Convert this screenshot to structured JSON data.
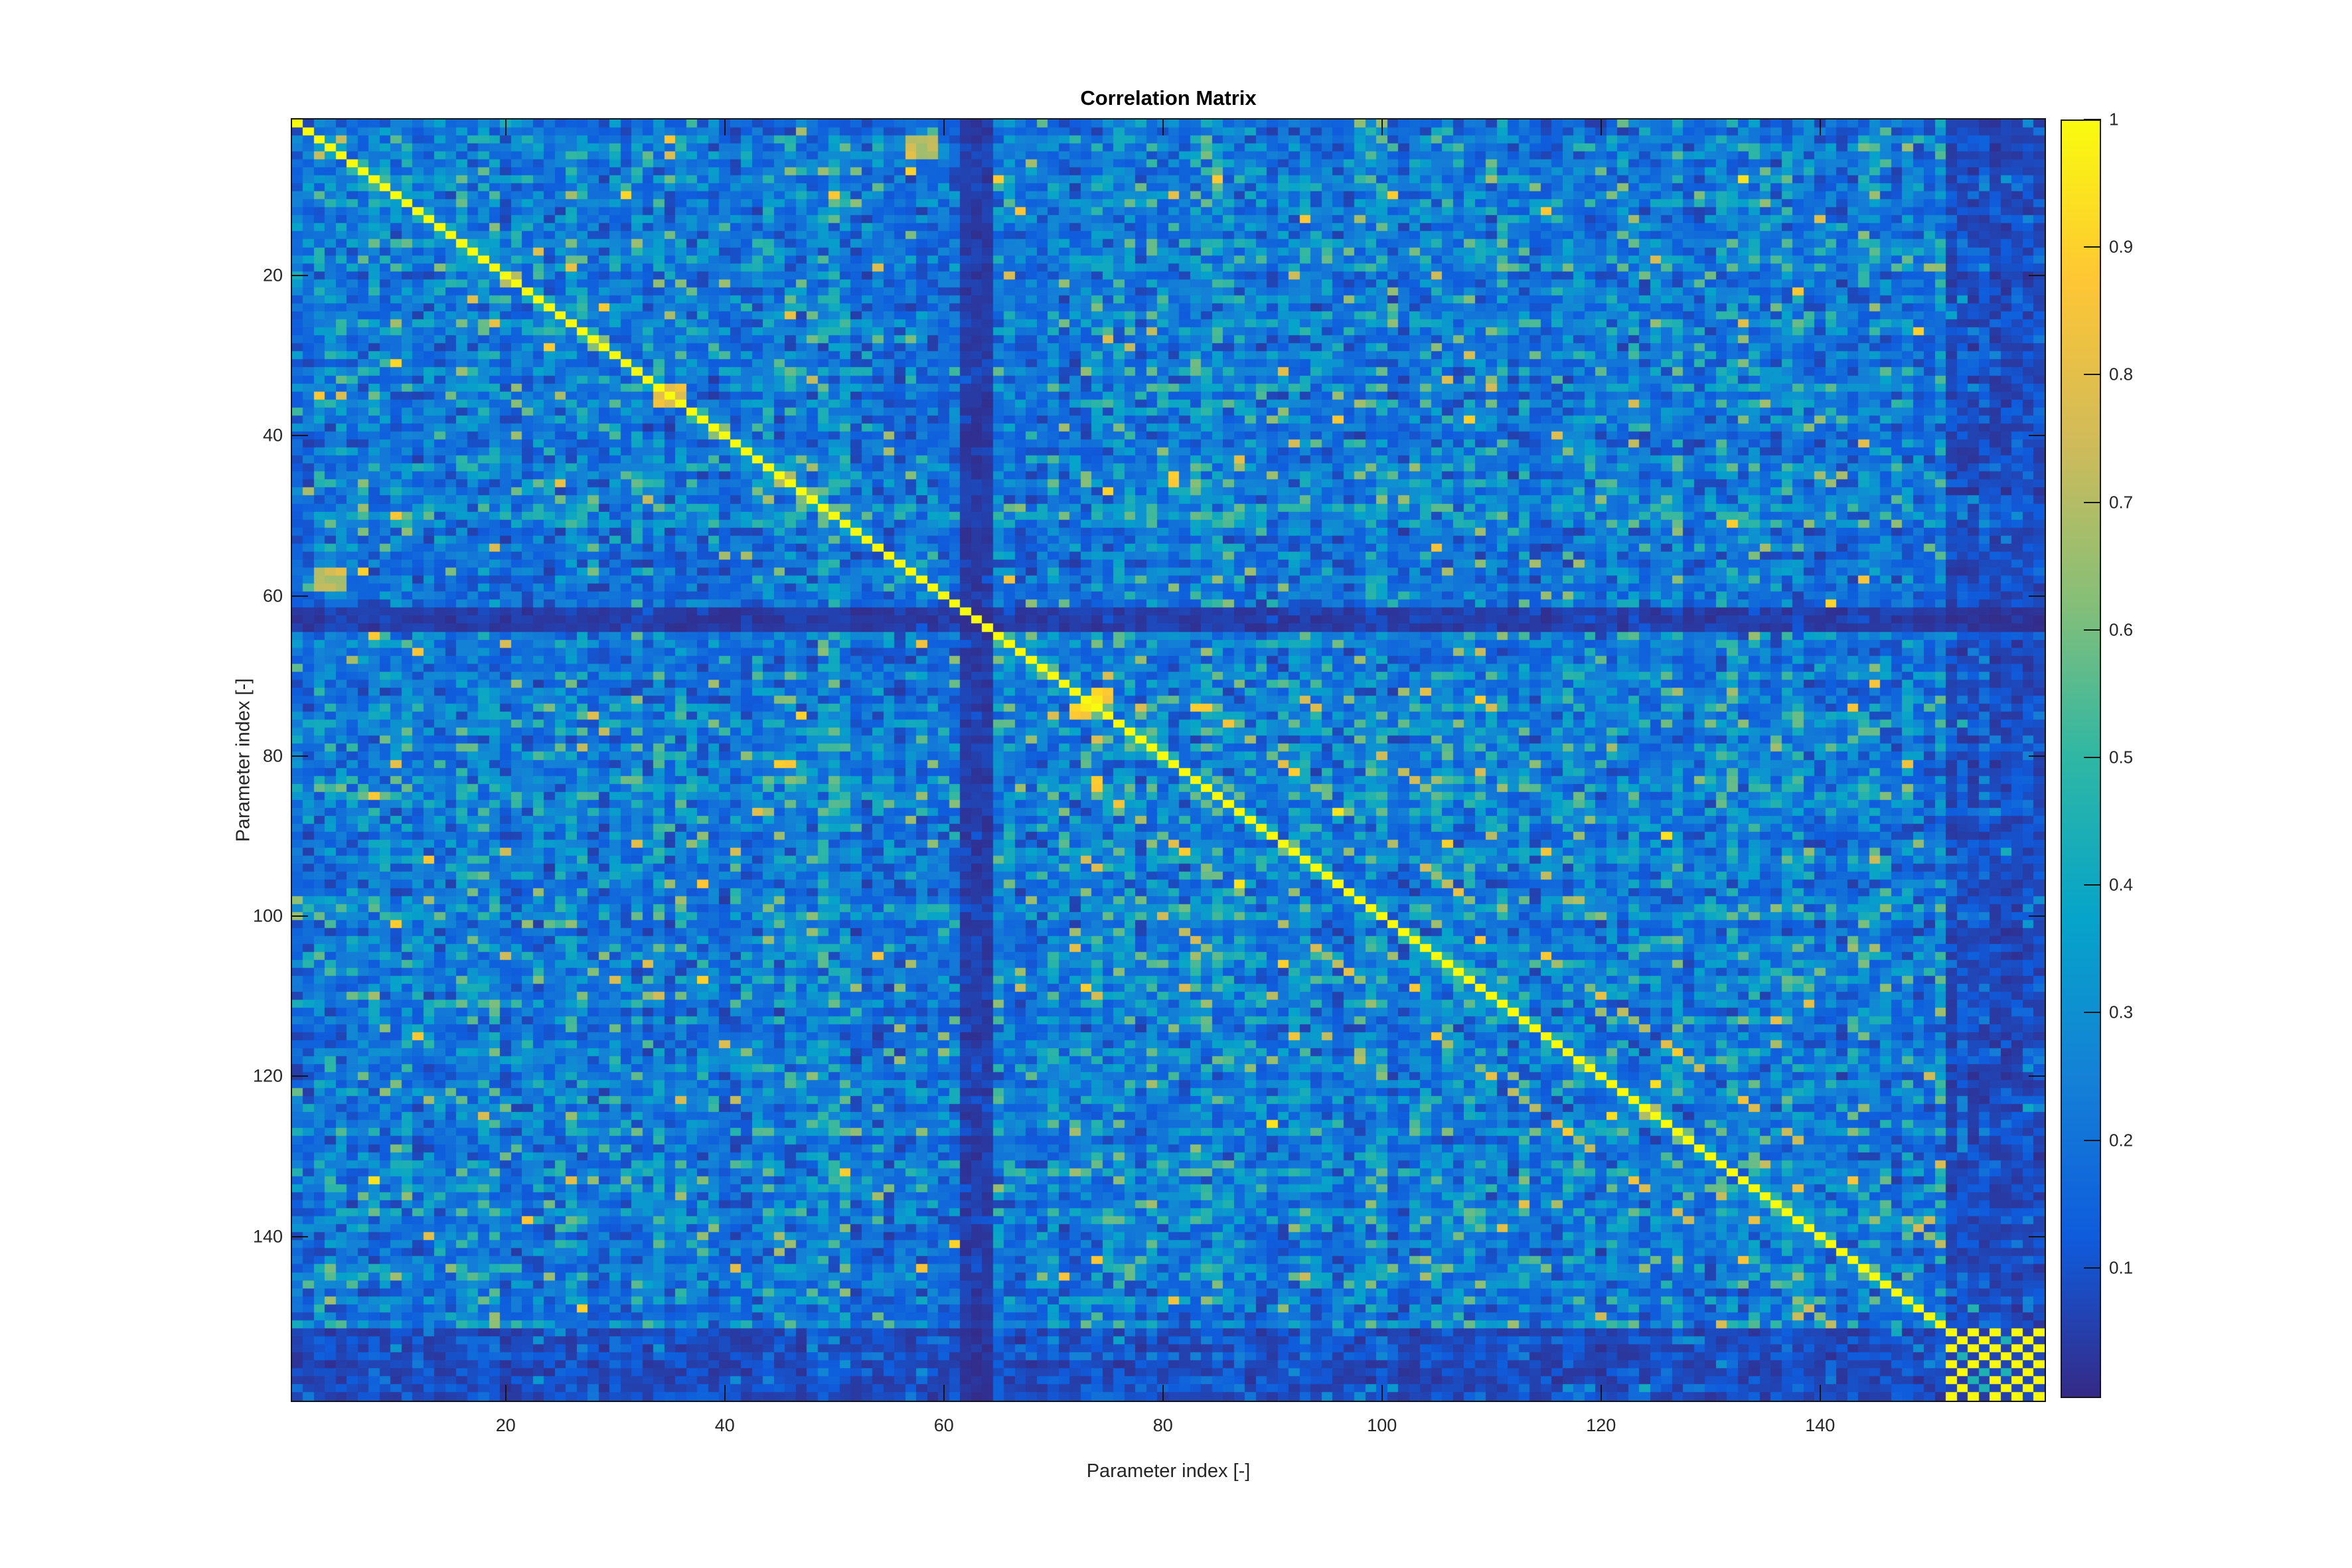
{
  "figure": {
    "background": "#ffffff",
    "axis_text_color": "#262626",
    "title_color": "#000000"
  },
  "chart_data": {
    "type": "heatmap",
    "title": "Correlation Matrix",
    "xlabel": "Parameter index [-]",
    "ylabel": "Parameter index [-]",
    "n_rows": 160,
    "n_cols": 160,
    "x_ticks": [
      20,
      40,
      60,
      80,
      100,
      120,
      140
    ],
    "x_tick_labels": [
      "20",
      "40",
      "60",
      "80",
      "100",
      "120",
      "140"
    ],
    "y_ticks": [
      20,
      40,
      60,
      80,
      100,
      120,
      140
    ],
    "y_tick_labels": [
      "20",
      "40",
      "60",
      "80",
      "100",
      "120",
      "140"
    ],
    "value_range": [
      0,
      1
    ],
    "colorbar": {
      "position": "right",
      "ticks": [
        {
          "value": 1.0,
          "label": "1"
        },
        {
          "value": 0.9,
          "label": "0.9"
        },
        {
          "value": 0.8,
          "label": "0.8"
        },
        {
          "value": 0.7,
          "label": "0.7"
        },
        {
          "value": 0.6,
          "label": "0.6"
        },
        {
          "value": 0.5,
          "label": "0.5"
        },
        {
          "value": 0.4,
          "label": "0.4"
        },
        {
          "value": 0.3,
          "label": "0.3"
        },
        {
          "value": 0.2,
          "label": "0.2"
        },
        {
          "value": 0.1,
          "label": "0.1"
        }
      ]
    },
    "colormap": {
      "name": "parula",
      "stops": [
        [
          0.0,
          "#352a87"
        ],
        [
          0.125,
          "#0f5cdd"
        ],
        [
          0.25,
          "#1481d6"
        ],
        [
          0.375,
          "#06a4ca"
        ],
        [
          0.5,
          "#2eb7a4"
        ],
        [
          0.625,
          "#87bf77"
        ],
        [
          0.75,
          "#d1bb59"
        ],
        [
          0.875,
          "#fec634"
        ],
        [
          1.0,
          "#f9fb0e"
        ]
      ]
    },
    "structure": {
      "seed": 1337,
      "diagonal_value": 1.0,
      "background_noise": {
        "base_min": 0.055,
        "uniform_weight": 0.2,
        "squared_weight": 0.28,
        "activity_min": 0.72,
        "activity_span": 0.56,
        "cap": 0.58,
        "teal_pop_probability": 0.048,
        "teal_pop_range": [
          0.4,
          0.68
        ],
        "warm_pop_probability": 0.007,
        "warm_pop_range": [
          0.72,
          0.95
        ],
        "near_diagonal_probability": 0.5,
        "near_diagonal_range": [
          0.28,
          0.73
        ]
      },
      "dark_cross": {
        "start_index": 62,
        "end_index": 64,
        "factor": 0.18
      },
      "dark_tail": {
        "start_index": 152,
        "factor_min": 0.25,
        "factor_span": 0.3
      },
      "checker_block": {
        "start_index": 152,
        "high": 1.0,
        "alt_high": 0.45,
        "alt_probability": 0.3,
        "low": 0.06
      },
      "secondary_diagonals": [
        {
          "offset": 10,
          "min_index": 66,
          "strength": 0.55,
          "spread": 0.35,
          "probability": 0.5
        },
        {
          "offset": 20,
          "min_index": 66,
          "strength": 0.5,
          "spread": 0.3,
          "probability": 0.3
        },
        {
          "offset": 30,
          "min_index": 66,
          "strength": 0.45,
          "spread": 0.3,
          "probability": 0.16
        }
      ],
      "hotspots": [
        {
          "row": 3,
          "col": 57,
          "rows": 3,
          "cols": 2,
          "value": 0.82
        },
        {
          "row": 58,
          "col": 3,
          "rows": 2,
          "cols": 3,
          "value": 0.78
        },
        {
          "row": 72,
          "col": 74,
          "rows": 2,
          "cols": 2,
          "value": 1.0
        },
        {
          "row": 35,
          "col": 34,
          "rows": 2,
          "cols": 2,
          "value": 0.85
        }
      ]
    }
  }
}
